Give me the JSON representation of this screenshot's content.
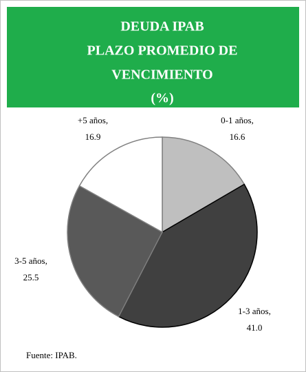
{
  "chart_data": {
    "type": "pie",
    "title": [
      "DEUDA IPAB",
      "PLAZO PROMEDIO DE",
      "VENCIMIENTO",
      "(%)"
    ],
    "categories": [
      "0-1 años,",
      "1-3 años,",
      "3-5 años,",
      "+5 años,"
    ],
    "values": [
      16.6,
      41.0,
      25.5,
      16.9
    ],
    "value_labels": [
      "16.6",
      "41.0",
      "25.5",
      "16.9"
    ],
    "colors": [
      "#bfbfbf",
      "#404040",
      "#595959",
      "#ffffff"
    ],
    "source": "Fuente: IPAB."
  }
}
